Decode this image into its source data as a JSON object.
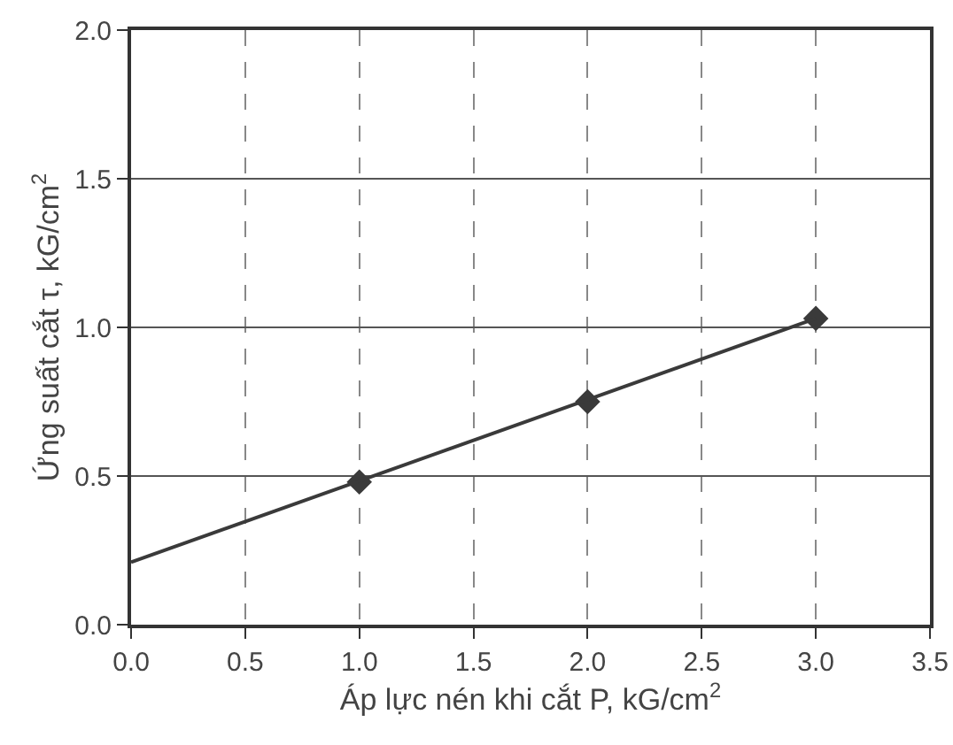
{
  "chart_data": {
    "type": "scatter",
    "xlabel": "Áp lực nén khi cắt P, kG/cm$^{2}$",
    "ylabel": "Ứng suất cắt τ, kG/cm$^{2}$",
    "series": [
      {
        "type": "scatter",
        "x": [
          1,
          2,
          3
        ],
        "values": [
          0.48,
          0.75,
          1.03
        ],
        "color": "#3a3a3a",
        "marker": "diamond"
      },
      {
        "type": "line",
        "x": [
          0,
          3
        ],
        "values": [
          0.21,
          1.03
        ],
        "color": "#3a3a3a",
        "line_style": "solid",
        "marker": "none"
      }
    ],
    "xlim": [
      0,
      3.5
    ],
    "xticks": [
      {
        "value": 0,
        "label": "0.0"
      },
      0.5,
      {
        "value": 1,
        "label": "1.0"
      },
      1.5,
      {
        "value": 2,
        "label": "2.0"
      },
      2.5,
      {
        "value": 3,
        "label": "3.0"
      },
      3.5
    ],
    "ylim": [
      0,
      2
    ],
    "yticks": [
      {
        "value": 0,
        "label": "0.0"
      },
      0.5,
      {
        "value": 1,
        "label": "1.0"
      },
      1.5,
      {
        "value": 2,
        "label": "2.0"
      }
    ],
    "grid": true
  }
}
